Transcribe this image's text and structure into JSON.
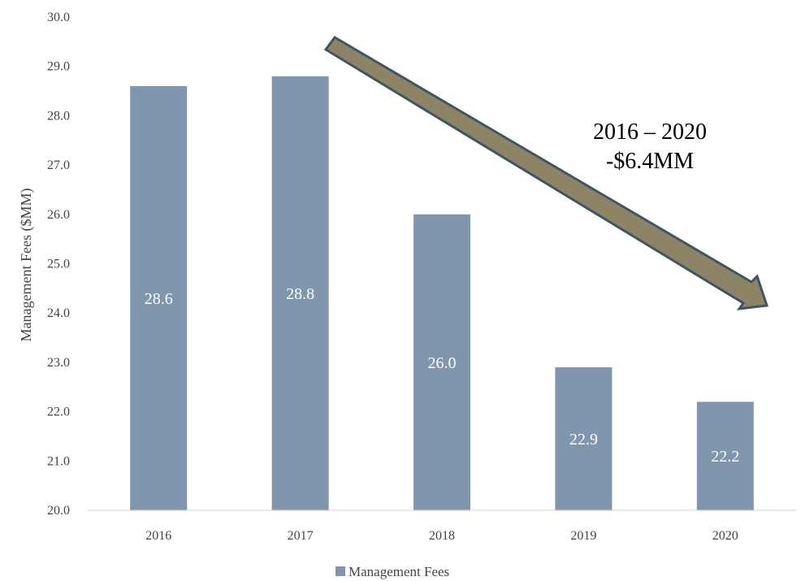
{
  "chart_data": {
    "type": "bar",
    "categories": [
      "2016",
      "2017",
      "2018",
      "2019",
      "2020"
    ],
    "series": [
      {
        "name": "Management Fees",
        "values": [
          28.6,
          28.8,
          26.0,
          22.9,
          22.2
        ],
        "color": "#7f96ad"
      }
    ],
    "data_labels": [
      "28.6",
      "28.8",
      "26.0",
      "22.9",
      "22.2"
    ],
    "ylabel": "Management Fees ($MM)",
    "ylim": [
      20.0,
      30.0
    ],
    "yticks": [
      "20.0",
      "21.0",
      "22.0",
      "23.0",
      "24.0",
      "25.0",
      "26.0",
      "27.0",
      "28.0",
      "29.0",
      "30.0"
    ],
    "grid": false,
    "legend": {
      "position": "bottom",
      "label": "Management Fees"
    },
    "annotation": {
      "line1": "2016 – 2020",
      "line2": "-$6.4MM",
      "arrow_fill": "#8d8466",
      "arrow_stroke": "#3f5567"
    }
  }
}
